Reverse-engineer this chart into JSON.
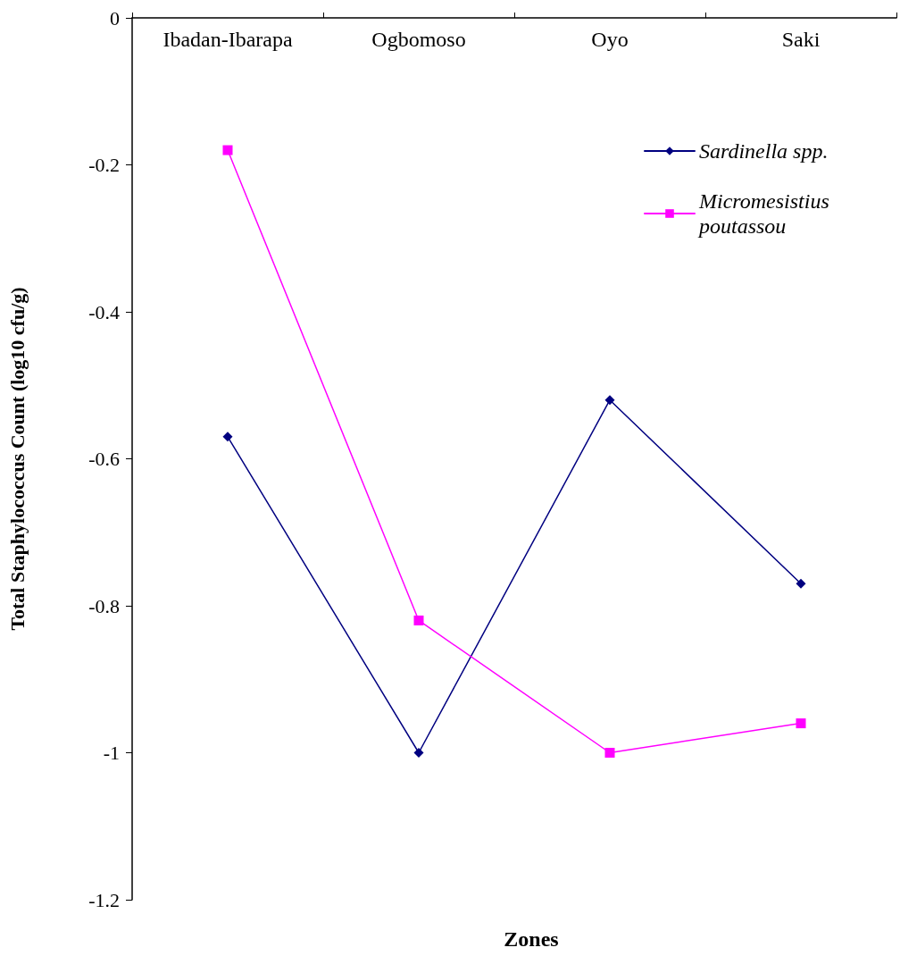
{
  "chart_data": {
    "type": "line",
    "xlabel": "Zones",
    "ylabel": "Total Staphylococcus Count (log10 cfu/g)",
    "categories": [
      "Ibadan-Ibarapa",
      "Ogbomoso",
      "Oyo",
      "Saki"
    ],
    "series": [
      {
        "name": "Sardinella spp.",
        "color": "#000080",
        "marker": "diamond",
        "values": [
          -0.57,
          -1.0,
          -0.52,
          -0.77
        ]
      },
      {
        "name": "Micromesistius poutassou",
        "color": "#ff00ff",
        "marker": "square",
        "values": [
          -0.18,
          -0.82,
          -1.0,
          -0.96
        ]
      }
    ],
    "ylim": [
      -1.2,
      0
    ],
    "yticks": [
      0,
      -0.2,
      -0.4,
      -0.6,
      -0.8,
      -1,
      -1.2
    ],
    "grid": false,
    "legend": "top right",
    "line_style": "solid"
  }
}
